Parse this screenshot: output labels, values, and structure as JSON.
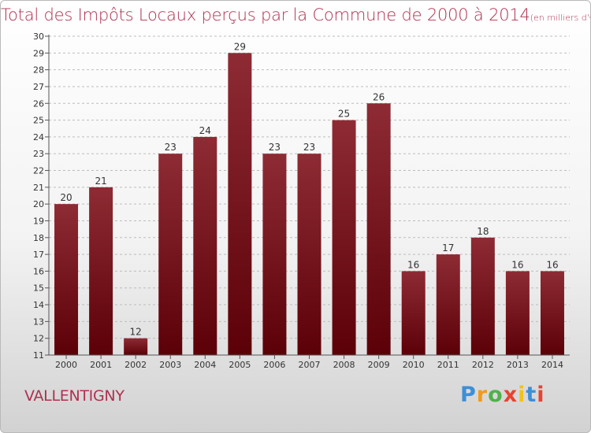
{
  "title": "Total des Impôts Locaux perçus par la Commune de 2000 à 2014",
  "title_unit": "(en milliers d'€)",
  "commune": "VALLENTIGNY",
  "logo": {
    "letters": [
      "P",
      "r",
      "o",
      "x",
      "i",
      "t",
      "i"
    ]
  },
  "colors": {
    "bar_top": "#8e2b34",
    "bar_bottom": "#5c0008",
    "title": "#b03050"
  },
  "chart_data": {
    "type": "bar",
    "title": "Total des Impôts Locaux perçus par la Commune de 2000 à 2014",
    "xlabel": "",
    "ylabel": "",
    "categories": [
      "2000",
      "2001",
      "2002",
      "2003",
      "2004",
      "2005",
      "2006",
      "2007",
      "2008",
      "2009",
      "2010",
      "2011",
      "2012",
      "2013",
      "2014"
    ],
    "values": [
      20,
      21,
      12,
      23,
      24,
      29,
      23,
      23,
      25,
      26,
      16,
      17,
      18,
      16,
      16
    ],
    "ylim": [
      11,
      30
    ],
    "yticks": [
      11,
      12,
      13,
      14,
      15,
      16,
      17,
      18,
      19,
      20,
      21,
      22,
      23,
      24,
      25,
      26,
      27,
      28,
      29,
      30
    ],
    "grid": "y-dashed"
  }
}
